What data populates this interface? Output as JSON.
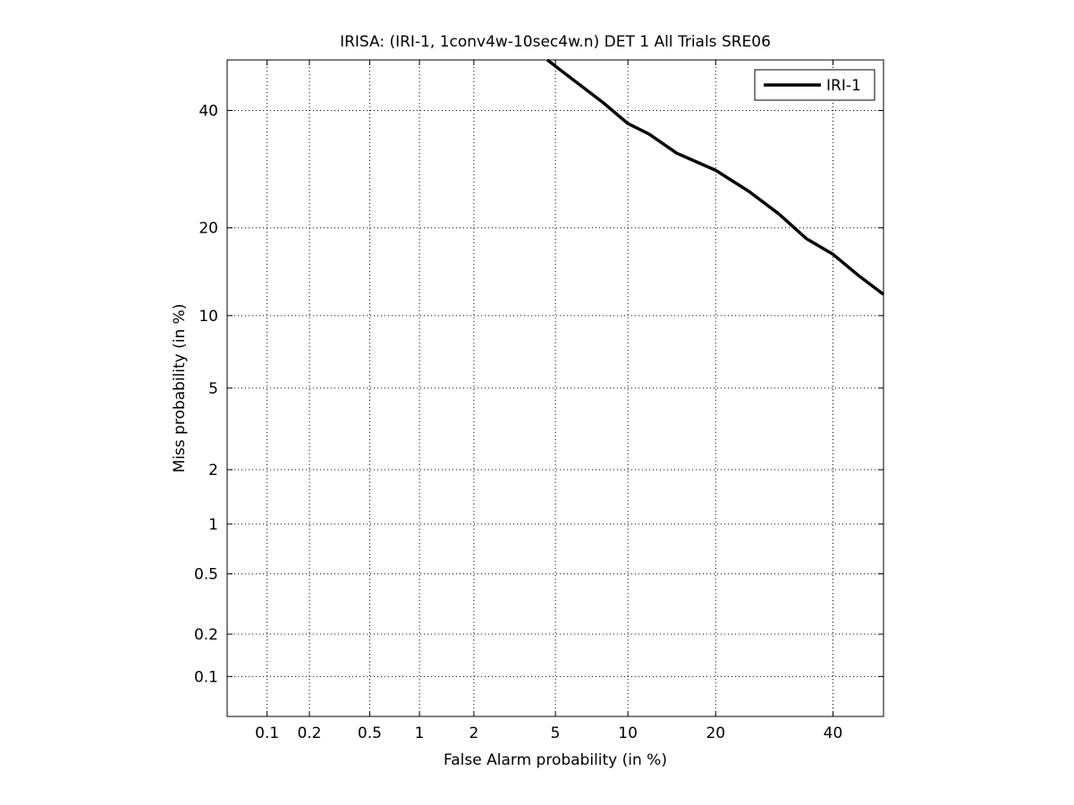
{
  "chart_data": {
    "type": "line",
    "title": "IRISA: (IRI-1, 1conv4w-10sec4w.n) DET 1 All Trials SRE06",
    "xlabel": "False Alarm probability (in %)",
    "ylabel": "Miss probability (in %)",
    "x_scale": "normal-deviate (probit)",
    "y_scale": "normal-deviate (probit)",
    "xlim": [
      0.05,
      50
    ],
    "ylim": [
      0.05,
      50
    ],
    "x_ticks": [
      0.1,
      0.2,
      0.5,
      1,
      2,
      5,
      10,
      20,
      40
    ],
    "x_tick_labels": [
      "0.1",
      "0.2",
      "0.5",
      "1",
      "2",
      "5",
      "10",
      "20",
      "40"
    ],
    "y_ticks": [
      0.1,
      0.2,
      0.5,
      1,
      2,
      5,
      10,
      20,
      40
    ],
    "y_tick_labels": [
      "0.1",
      "0.2",
      "0.5",
      "1",
      "2",
      "5",
      "10",
      "20",
      "40"
    ],
    "grid": true,
    "legend_position": "top-right",
    "series": [
      {
        "name": "IRI-1",
        "color": "#000000",
        "x": [
          4.6,
          6.0,
          8.0,
          10.0,
          12.0,
          15.0,
          20.0,
          25.0,
          30.0,
          35.0,
          40.0,
          45.0,
          50.0
        ],
        "y": [
          50.0,
          46.0,
          41.5,
          37.5,
          35.5,
          32.0,
          29.0,
          25.5,
          22.0,
          18.5,
          16.5,
          14.0,
          12.0
        ]
      }
    ]
  }
}
